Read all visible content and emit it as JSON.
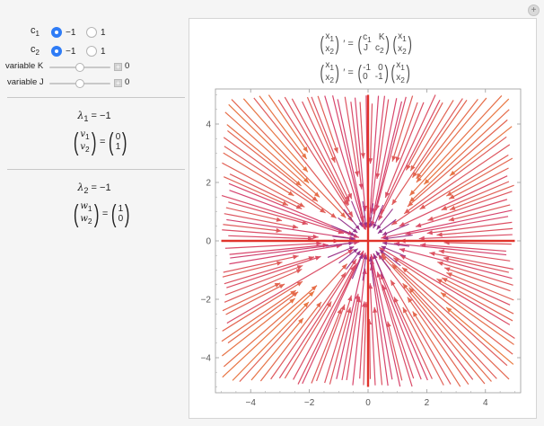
{
  "controls": {
    "c1": {
      "label": "c",
      "sub": "1",
      "options": [
        "−1",
        "1"
      ],
      "selected": 0
    },
    "c2": {
      "label": "c",
      "sub": "2",
      "options": [
        "−1",
        "1"
      ],
      "selected": 0
    },
    "variableK": {
      "label": "variable K",
      "value": "0",
      "level": 0.5
    },
    "variableJ": {
      "label": "variable J",
      "value": "0",
      "level": 0.5
    }
  },
  "eigen": [
    {
      "lambda_symbol": "λ",
      "lambda_sub": "1",
      "lambda_value": " = −1",
      "vec_top": "v",
      "vec_top_sub": "1",
      "vec_bottom": "v",
      "vec_bottom_sub": "2",
      "vals": [
        "0",
        "1"
      ]
    },
    {
      "lambda_symbol": "λ",
      "lambda_sub": "2",
      "lambda_value": " = −1",
      "vec_top": "w",
      "vec_top_sub": "1",
      "vec_bottom": "w",
      "vec_bottom_sub": "2",
      "vals": [
        "1",
        "0"
      ]
    }
  ],
  "equations": {
    "general": {
      "lhs_top": "x",
      "lhs_top_sub": "1",
      "lhs_bottom": "x",
      "lhs_bottom_sub": "2",
      "prime": "′ =",
      "m11": "c",
      "m11_sub": "1",
      "m12": "K",
      "m21": "J",
      "m22": "c",
      "m22_sub": "2",
      "rhs_top": "x",
      "rhs_top_sub": "1",
      "rhs_bottom": "x",
      "rhs_bottom_sub": "2"
    },
    "specific": {
      "prime": "′ =",
      "m11": "-1",
      "m12": "0",
      "m21": "0",
      "m22": "-1"
    }
  },
  "chart_data": {
    "type": "vector-field",
    "system": {
      "a11": -1,
      "a12": 0,
      "a21": 0,
      "a22": -1
    },
    "xlim": [
      -5.2,
      5.2
    ],
    "ylim": [
      -5.2,
      5.2
    ],
    "xticks": [
      -4,
      -2,
      0,
      2,
      4
    ],
    "yticks": [
      -4,
      -2,
      0,
      2,
      4
    ],
    "xtick_labels": [
      "−4",
      "−2",
      "0",
      "2",
      "4"
    ],
    "ytick_labels": [
      "−4",
      "−2",
      "0",
      "2",
      "4"
    ],
    "eigenvector_lines": [
      {
        "direction": [
          0,
          1
        ]
      },
      {
        "direction": [
          1,
          0
        ]
      }
    ],
    "eigen_line_color": "#e0342c",
    "color_near": "#6e2a9e",
    "color_mid": "#d8456e",
    "color_far": "#f7a21b",
    "streamline_count": 160
  }
}
